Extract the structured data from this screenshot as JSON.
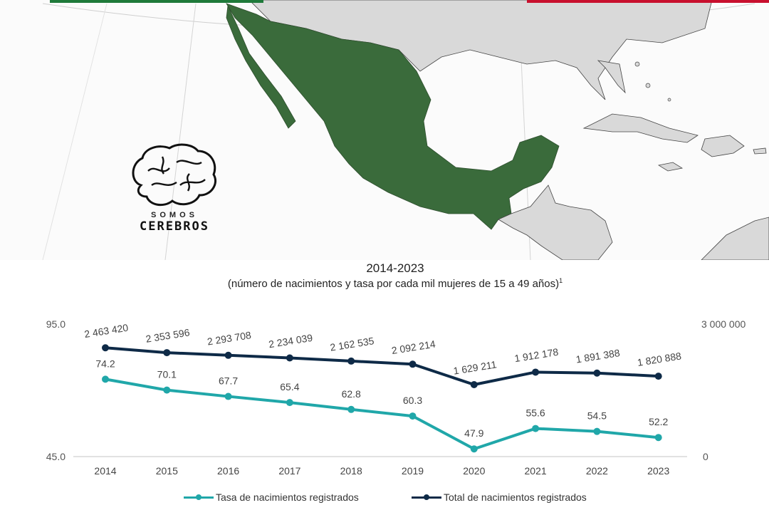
{
  "logo": {
    "line1": "SOMOS",
    "line2": "CEREBROS"
  },
  "colors": {
    "mexico": "#3a6b3b",
    "land": "#d9d9d9",
    "rate_series": "#20a7a9",
    "total_series": "#0e2a47"
  },
  "chart_data": {
    "type": "line",
    "title": "2014-2023",
    "subtitle": "(número de nacimientos y tasa por cada mil mujeres de 15 a 49 años)",
    "subtitle_note": "1",
    "categories": [
      "2014",
      "2015",
      "2016",
      "2017",
      "2018",
      "2019",
      "2020",
      "2021",
      "2022",
      "2023"
    ],
    "series": [
      {
        "name": "Tasa de nacimientos registrados",
        "axis": "left",
        "values": [
          74.2,
          70.1,
          67.7,
          65.4,
          62.8,
          60.3,
          47.9,
          55.6,
          54.5,
          52.2
        ],
        "labels": [
          "74.2",
          "70.1",
          "67.7",
          "65.4",
          "62.8",
          "60.3",
          "47.9",
          "55.6",
          "54.5",
          "52.2"
        ]
      },
      {
        "name": "Total de nacimientos registrados",
        "axis": "right",
        "values": [
          2463420,
          2353596,
          2293708,
          2234039,
          2162535,
          2092214,
          1629211,
          1912178,
          1891388,
          1820888
        ],
        "labels": [
          "2 463 420",
          "2 353 596",
          "2 293 708",
          "2 234 039",
          "2 162 535",
          "2 092 214",
          "1 629 211",
          "1 912 178",
          "1 891 388",
          "1 820 888"
        ]
      }
    ],
    "y_left": {
      "ylim": [
        45.0,
        95.0
      ],
      "tick_labels": [
        "45.0",
        "95.0"
      ]
    },
    "y_right": {
      "ylim": [
        0,
        3000000
      ],
      "tick_labels": [
        "0",
        "3 000 000"
      ]
    },
    "grid": false,
    "legend": "bottom"
  }
}
